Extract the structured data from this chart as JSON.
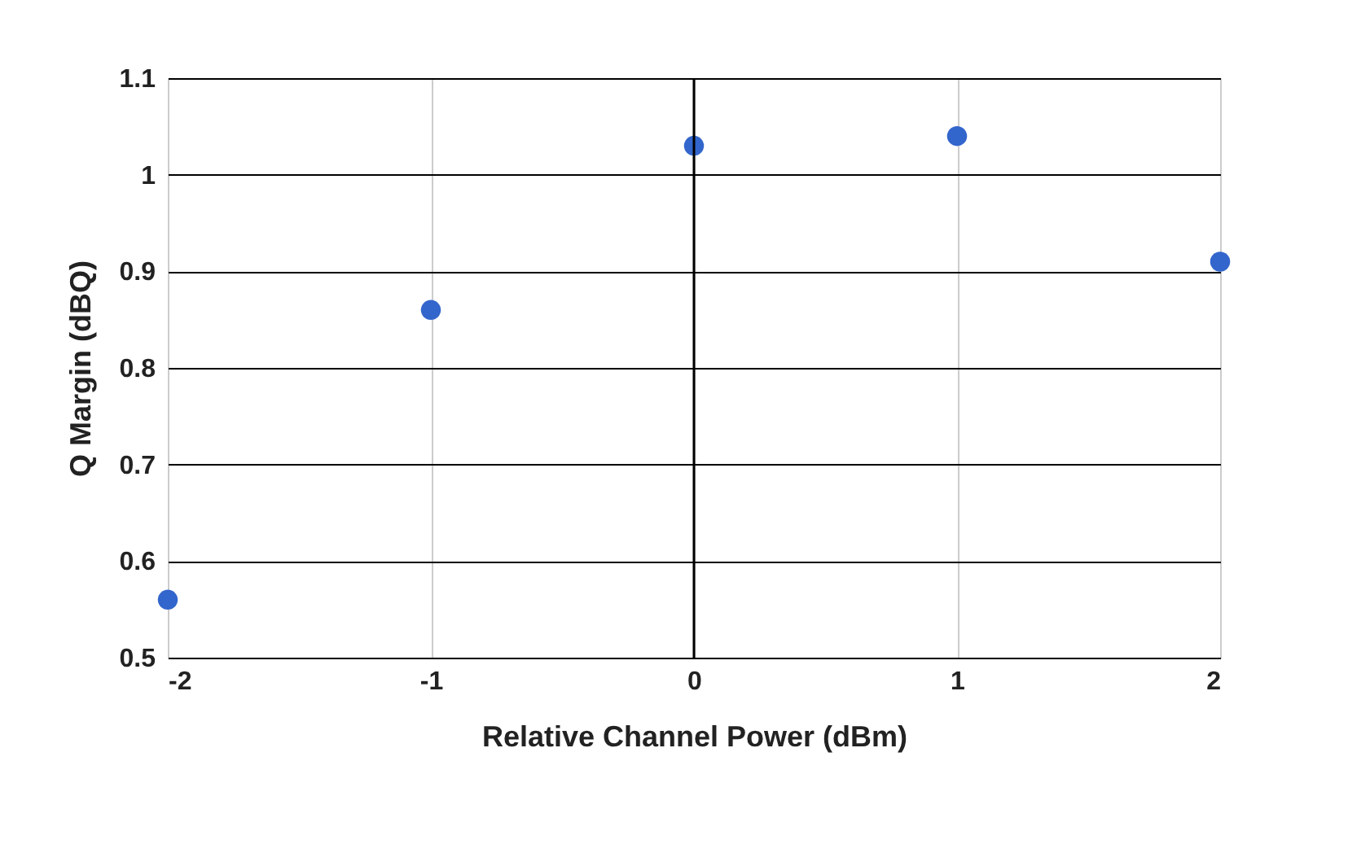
{
  "chart_data": {
    "type": "scatter",
    "xlabel": "Relative Channel Power (dBm)",
    "ylabel": "Q Margin (dBQ)",
    "x": [
      -2,
      -1,
      0,
      1,
      2
    ],
    "series": [
      {
        "color": "#3366cc",
        "values": [
          0.56,
          0.86,
          1.03,
          1.04,
          0.91
        ]
      }
    ],
    "xlim": [
      -2,
      2
    ],
    "xticks": [
      -2,
      -1,
      0,
      1,
      2
    ],
    "ylim": [
      0.5,
      1.1
    ],
    "yticks": [
      0.5,
      0.6,
      0.7,
      0.8,
      0.9,
      1,
      1.1
    ],
    "grid": true,
    "marker": "circle",
    "ref_lines": [
      {
        "axis": "x",
        "value": 0,
        "color": "#000000"
      }
    ]
  }
}
